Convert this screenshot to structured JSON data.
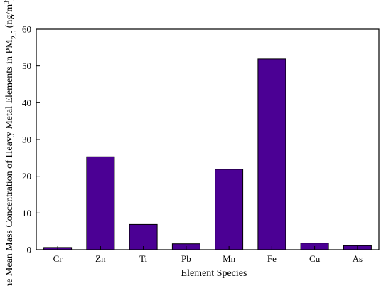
{
  "chart_data": {
    "type": "bar",
    "title": "",
    "xlabel": "Element Species",
    "ylabel_parts": {
      "prefix": "The Mean Mass Concentration of Heavy Metal Elements in PM",
      "subscript": "2.5",
      "unit_open": " (ng/m",
      "superscript": "3",
      "unit_close": ")"
    },
    "ylim": [
      0,
      60
    ],
    "yticks": [
      "0",
      "10",
      "20",
      "30",
      "40",
      "50",
      "60"
    ],
    "categories": [
      "Cr",
      "Zn",
      "Ti",
      "Pb",
      "Mn",
      "Fe",
      "Cu",
      "As"
    ],
    "values": [
      0.6,
      25.3,
      6.9,
      1.6,
      21.9,
      51.9,
      1.8,
      1.1
    ],
    "bar_color": "#4b0094",
    "grid": false
  }
}
